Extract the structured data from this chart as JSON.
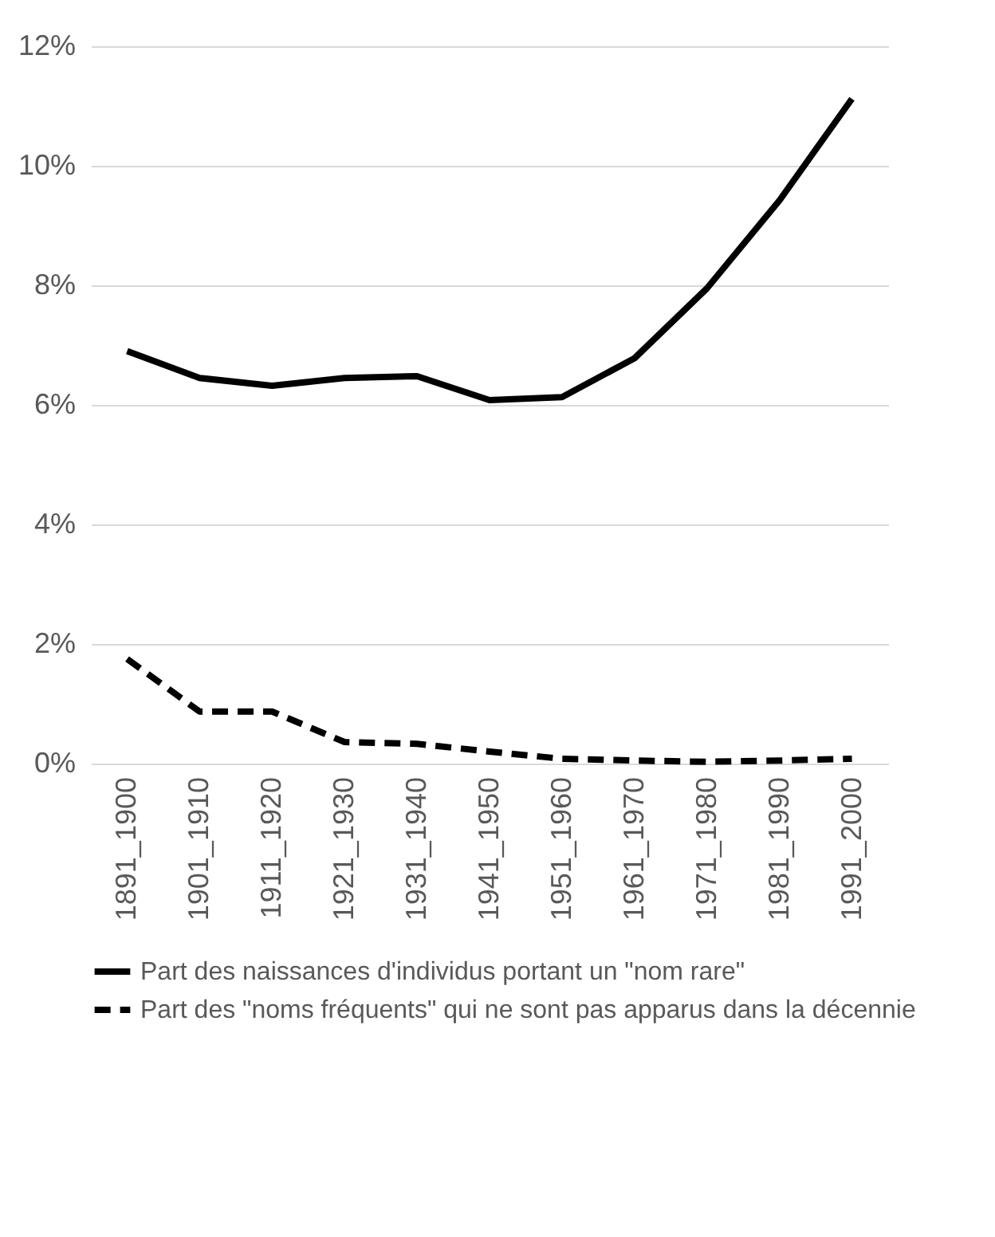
{
  "chart_data": {
    "type": "line",
    "categories": [
      "1891_1900",
      "1901_1910",
      "1911_1920",
      "1921_1930",
      "1931_1940",
      "1941_1950",
      "1951_1960",
      "1961_1970",
      "1971_1980",
      "1981_1990",
      "1991_2000"
    ],
    "series": [
      {
        "name": "Part des naissances d'individus portant un \"nom rare\"",
        "color": "#000000",
        "line_style": "solid",
        "values": [
          6.9,
          6.45,
          6.32,
          6.45,
          6.48,
          6.08,
          6.13,
          6.78,
          7.95,
          9.42,
          11.12
        ]
      },
      {
        "name": "Part des \"noms fréquents\" qui ne sont pas apparus dans la décennie",
        "color": "#000000",
        "line_style": "dashed",
        "values": [
          1.75,
          0.87,
          0.87,
          0.36,
          0.33,
          0.2,
          0.08,
          0.05,
          0.03,
          0.05,
          0.08
        ]
      }
    ],
    "ylim": [
      0,
      12
    ],
    "yticks": [
      {
        "value": 0,
        "label": "0%"
      },
      {
        "value": 2,
        "label": "2%"
      },
      {
        "value": 4,
        "label": "4%"
      },
      {
        "value": 6,
        "label": "6%"
      },
      {
        "value": 8,
        "label": "8%"
      },
      {
        "value": 10,
        "label": "10%"
      },
      {
        "value": 12,
        "label": "12%"
      }
    ],
    "grid": "y",
    "legend": "bottom"
  }
}
